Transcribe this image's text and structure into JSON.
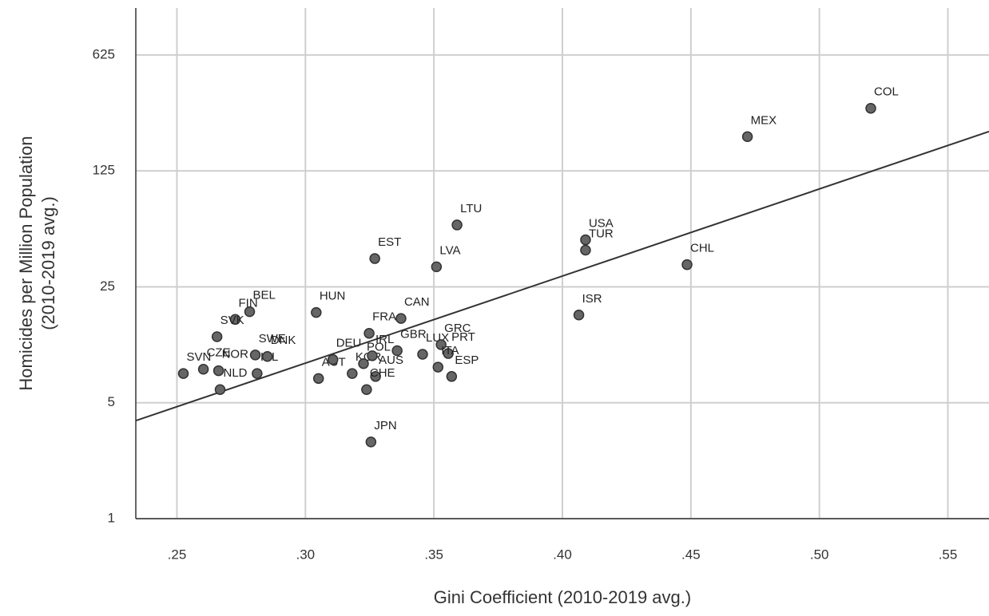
{
  "chart_data": {
    "type": "scatter",
    "x_label": "Gini Coefficient (2010-2019 avg.)",
    "y_label": "Homicides per Million Population",
    "y_label_sub": "(2010-2019 avg.)",
    "labels": [
      "SVN",
      "CZE",
      "NOR",
      "NLD",
      "ISL",
      "FIN",
      "BEL",
      "SVK",
      "SWE",
      "DNK",
      "HUN",
      "AUT",
      "DEU",
      "KOR",
      "POL",
      "IRL",
      "AUS",
      "CHE",
      "FRA",
      "CAN",
      "GBR",
      "LUX",
      "GRC",
      "PRT",
      "ITA",
      "ESP",
      "ISR",
      "JPN",
      "EST",
      "LVA",
      "LTU",
      "USA",
      "TUR",
      "CHL",
      "MEX",
      "COL"
    ],
    "x": [
      0.2525,
      0.2603,
      0.2662,
      0.2668,
      0.2812,
      0.2727,
      0.2783,
      0.2656,
      0.2805,
      0.2852,
      0.3042,
      0.3051,
      0.3107,
      0.3182,
      0.3226,
      0.326,
      0.3273,
      0.3238,
      0.3248,
      0.3372,
      0.3357,
      0.3456,
      0.3528,
      0.3556,
      0.3516,
      0.3569,
      0.4064,
      0.3255,
      0.327,
      0.351,
      0.359,
      0.409,
      0.409,
      0.4485,
      0.472,
      0.52
    ],
    "values": [
      7.5,
      7.96,
      7.8,
      6.0,
      7.5,
      15.9,
      17.7,
      12.5,
      9.7,
      9.5,
      17.5,
      7.0,
      9.1,
      7.5,
      8.6,
      9.6,
      7.2,
      6.0,
      13.1,
      16.1,
      10.3,
      9.8,
      11.2,
      9.9,
      8.2,
      7.2,
      16.9,
      2.9,
      37,
      33,
      59,
      48,
      41.6,
      34,
      201,
      298
    ],
    "fit_line": {
      "x": [
        0.234,
        0.566
      ],
      "y": [
        3.9,
        216
      ]
    },
    "color": "#666666",
    "xlim": [
      0.234,
      0.566
    ],
    "ylim": [
      1,
      1200
    ],
    "log_y": true,
    "grid": true,
    "xticks": [
      {
        "value": 0.25,
        "label": ".25"
      },
      {
        "value": 0.3,
        "label": ".30"
      },
      {
        "value": 0.35,
        "label": ".35"
      },
      {
        "value": 0.4,
        "label": ".40"
      },
      {
        "value": 0.45,
        "label": ".45"
      },
      {
        "value": 0.5,
        "label": ".50"
      },
      {
        "value": 0.55,
        "label": ".55"
      }
    ],
    "yticks": [
      1,
      5,
      25,
      125,
      625
    ]
  }
}
